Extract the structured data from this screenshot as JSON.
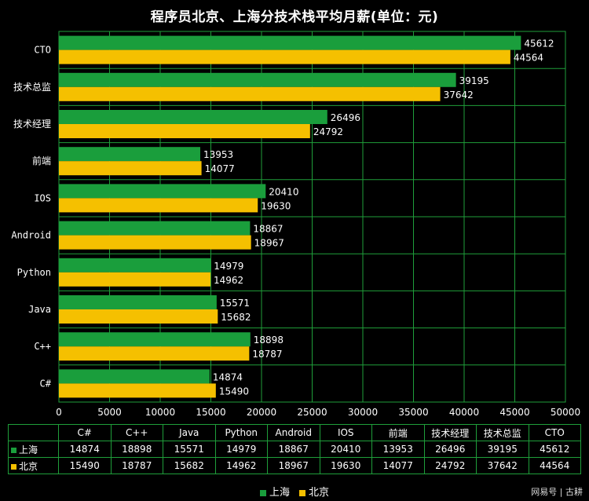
{
  "chart_data": {
    "type": "bar",
    "orientation": "horizontal",
    "title": "程序员北京、上海分技术栈平均月薪(单位：元)",
    "categories": [
      "CTO",
      "技术总监",
      "技术经理",
      "前端",
      "IOS",
      "Android",
      "Python",
      "Java",
      "C++",
      "C#"
    ],
    "series": [
      {
        "name": "上海",
        "color": "#1a9e3c",
        "values": [
          45612,
          39195,
          26496,
          13953,
          20410,
          18867,
          14979,
          15571,
          18898,
          14874
        ]
      },
      {
        "name": "北京",
        "color": "#f5c000",
        "values": [
          44564,
          37642,
          24792,
          14077,
          19630,
          18967,
          14962,
          15682,
          18787,
          15490
        ]
      }
    ],
    "xlim": [
      0,
      50000
    ],
    "xticks": [
      "0",
      "5000",
      "10000",
      "15000",
      "20000",
      "25000",
      "30000",
      "35000",
      "40000",
      "45000",
      "50000"
    ],
    "grid": true,
    "legend": "bottom",
    "data_table": {
      "columns": [
        "C#",
        "C++",
        "Java",
        "Python",
        "Android",
        "IOS",
        "前端",
        "技术经理",
        "技术总监",
        "CTO"
      ],
      "rows": [
        {
          "name": "上海",
          "values": [
            "14874",
            "18898",
            "15571",
            "14979",
            "18867",
            "20410",
            "13953",
            "26496",
            "39195",
            "45612"
          ]
        },
        {
          "name": "北京",
          "values": [
            "15490",
            "18787",
            "15682",
            "14962",
            "18967",
            "19630",
            "14077",
            "24792",
            "37642",
            "44564"
          ]
        }
      ]
    }
  },
  "watermark": "网易号 | 古耕",
  "colors": {
    "grid": "#1f9e3a",
    "background": "#000000"
  }
}
